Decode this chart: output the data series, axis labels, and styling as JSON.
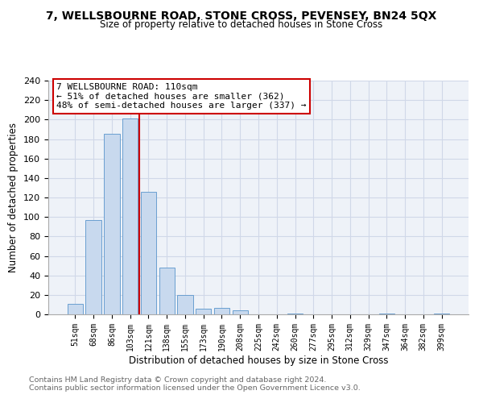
{
  "title": "7, WELLSBOURNE ROAD, STONE CROSS, PEVENSEY, BN24 5QX",
  "subtitle": "Size of property relative to detached houses in Stone Cross",
  "xlabel": "Distribution of detached houses by size in Stone Cross",
  "ylabel": "Number of detached properties",
  "footer_line1": "Contains HM Land Registry data © Crown copyright and database right 2024.",
  "footer_line2": "Contains public sector information licensed under the Open Government Licence v3.0.",
  "bar_labels": [
    "51sqm",
    "68sqm",
    "86sqm",
    "103sqm",
    "121sqm",
    "138sqm",
    "155sqm",
    "173sqm",
    "190sqm",
    "208sqm",
    "225sqm",
    "242sqm",
    "260sqm",
    "277sqm",
    "295sqm",
    "312sqm",
    "329sqm",
    "347sqm",
    "364sqm",
    "382sqm",
    "399sqm"
  ],
  "bar_values": [
    11,
    97,
    185,
    201,
    126,
    48,
    20,
    6,
    7,
    4,
    0,
    0,
    1,
    0,
    0,
    0,
    0,
    1,
    0,
    0,
    1
  ],
  "bar_color": "#c8d9ee",
  "bar_edge_color": "#6a9fd0",
  "vline_x": 3.5,
  "vline_color": "#cc0000",
  "annotation_title": "7 WELLSBOURNE ROAD: 110sqm",
  "annotation_line1": "← 51% of detached houses are smaller (362)",
  "annotation_line2": "48% of semi-detached houses are larger (337) →",
  "annotation_box_color": "#ffffff",
  "annotation_box_edge": "#cc0000",
  "ylim": [
    0,
    240
  ],
  "yticks": [
    0,
    20,
    40,
    60,
    80,
    100,
    120,
    140,
    160,
    180,
    200,
    220,
    240
  ],
  "grid_color": "#d0d8e8",
  "background_color": "#ffffff",
  "plot_bg_color": "#eef2f8",
  "footer_color": "#666666"
}
